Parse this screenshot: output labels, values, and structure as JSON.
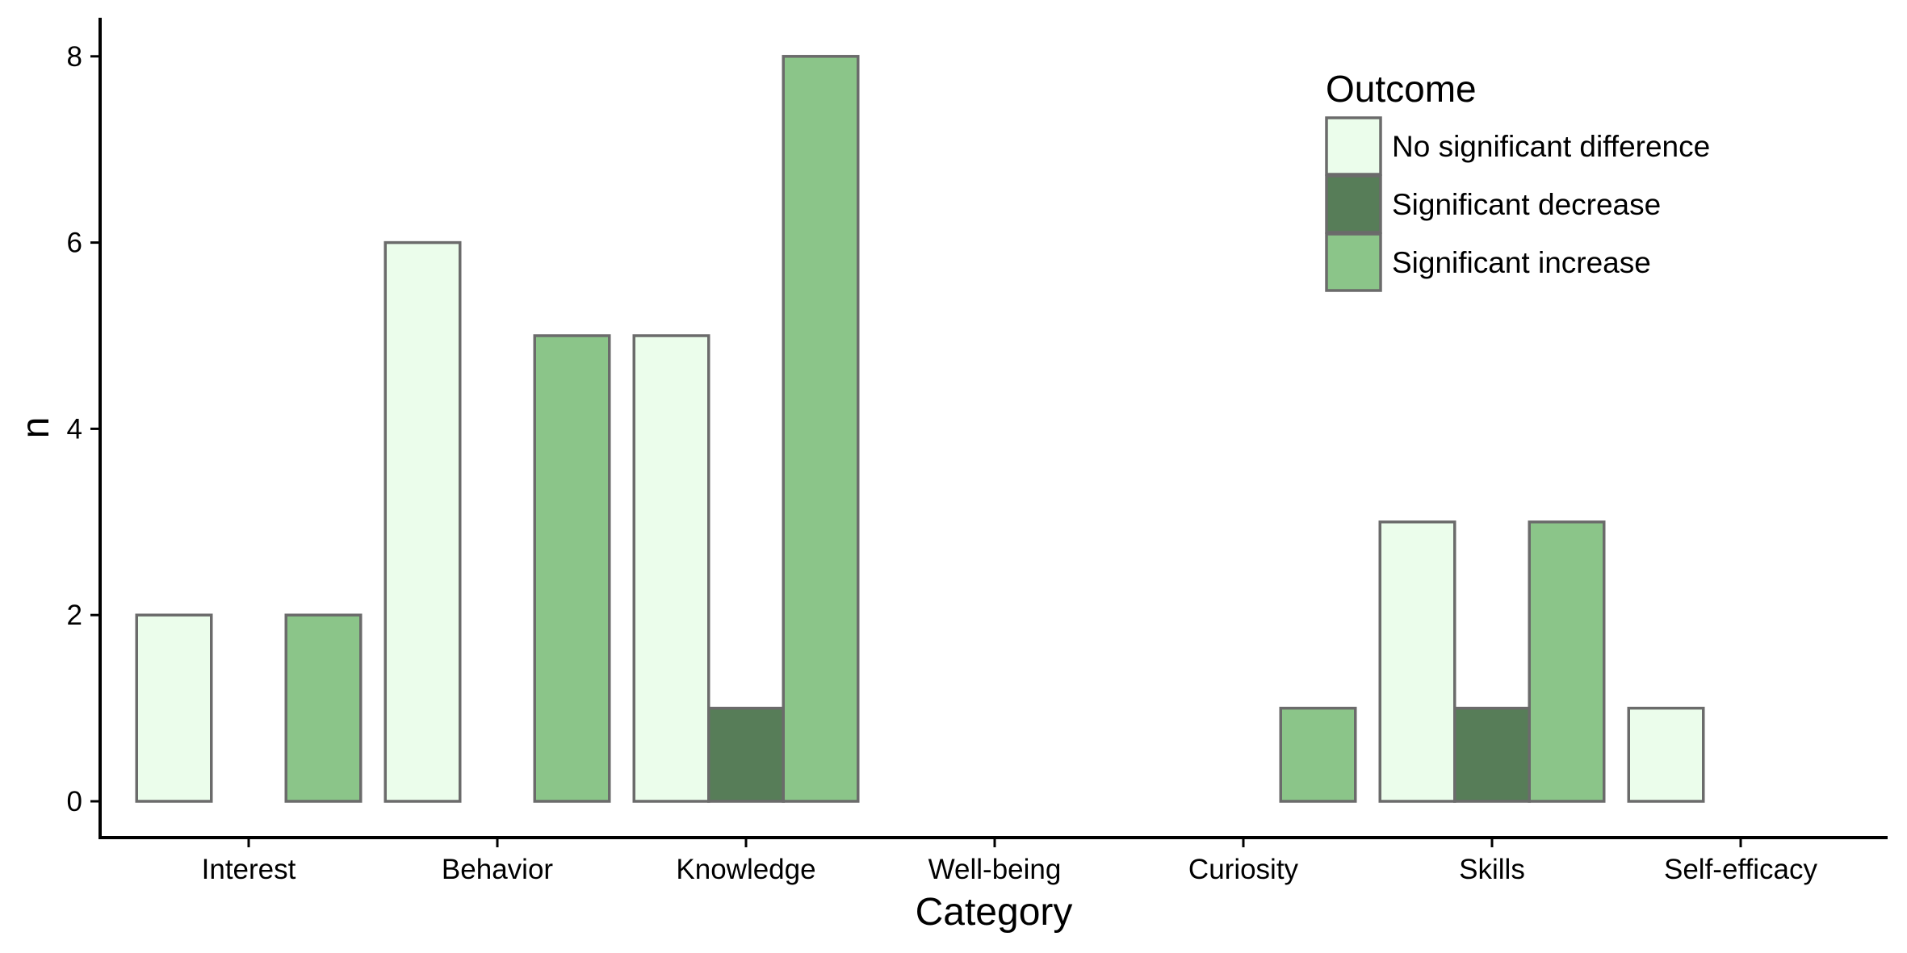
{
  "chart_data": {
    "type": "bar",
    "xlabel": "Category",
    "ylabel": "n",
    "ylim": [
      0,
      8.35
    ],
    "yticks": [
      0,
      2,
      4,
      6,
      8
    ],
    "categories": [
      "Interest",
      "Behavior",
      "Knowledge",
      "Well-being",
      "Curiosity",
      "Skills",
      "Self-efficacy"
    ],
    "series": [
      {
        "name": "No significant difference",
        "color": "#ebfdeb",
        "values": [
          2,
          6,
          5,
          0,
          0,
          3,
          1
        ]
      },
      {
        "name": "Significant decrease",
        "color": "#577d58",
        "values": [
          0,
          0,
          1,
          0,
          0,
          1,
          0
        ]
      },
      {
        "name": "Significant increase",
        "color": "#8bc589",
        "values": [
          2,
          5,
          8,
          0,
          1,
          3,
          0
        ]
      }
    ],
    "legend": {
      "title": "Outcome",
      "position": "top-right (inside)"
    },
    "bar_outline_color": "#6b6b6b",
    "grid": false
  }
}
